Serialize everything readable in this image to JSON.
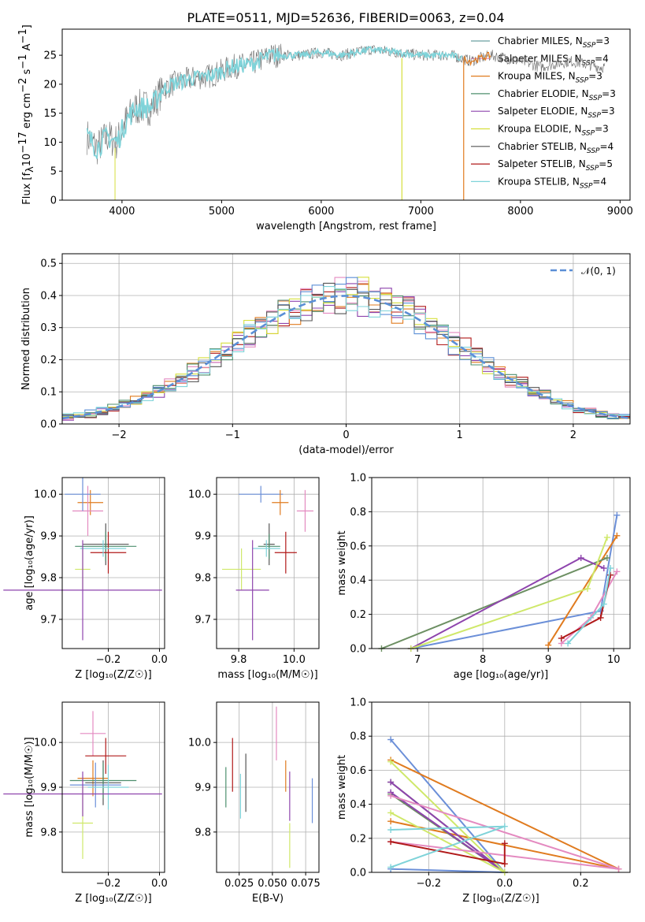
{
  "title": "PLATE=0511, MJD=52636, FIBERID=0063, z=0.04",
  "colors": {
    "chabrier_miles": "#6a9fa0",
    "salpeter_miles": "#e48ac0",
    "kroupa_miles": "#e07b1f",
    "chabrier_elodie": "#4e8f6e",
    "salpeter_elodie": "#8e44ad",
    "kroupa_elodie": "#d6df3c",
    "chabrier_stelib": "#555555",
    "salpeter_stelib": "#b11a1a",
    "kroupa_stelib": "#7fd3d9",
    "gaussian": "#5b8fd6",
    "blue_panel": "#6b8fd8",
    "green_panel": "#6c8f62",
    "yellow_panel": "#cfe86a",
    "grid": "#b0b0b0"
  },
  "legend": [
    {
      "label": "Chabrier MILES, N",
      "sub": "SSP",
      "tail": "=3",
      "color": "#6a9fa0"
    },
    {
      "label": "Salpeter MILES, N",
      "sub": "SSP",
      "tail": "=4",
      "color": "#e48ac0"
    },
    {
      "label": "Kroupa MILES, N",
      "sub": "SSP",
      "tail": "=3",
      "color": "#e07b1f"
    },
    {
      "label": "Chabrier ELODIE, N",
      "sub": "SSP",
      "tail": "=3",
      "color": "#4e8f6e"
    },
    {
      "label": "Salpeter ELODIE, N",
      "sub": "SSP",
      "tail": "=3",
      "color": "#8e44ad"
    },
    {
      "label": "Kroupa ELODIE, N",
      "sub": "SSP",
      "tail": "=3",
      "color": "#d6df3c"
    },
    {
      "label": "Chabrier STELIB, N",
      "sub": "SSP",
      "tail": "=4",
      "color": "#555555"
    },
    {
      "label": "Salpeter STELIB, N",
      "sub": "SSP",
      "tail": "=5",
      "color": "#b11a1a"
    },
    {
      "label": "Kroupa STELIB, N",
      "sub": "SSP",
      "tail": "=4",
      "color": "#7fd3d9"
    }
  ],
  "chart_data": [
    {
      "type": "line",
      "title": "PLATE=0511, MJD=52636, FIBERID=0063, z=0.04",
      "xlabel": "wavelength [Angstrom, rest frame]",
      "ylabel": "Flux [f",
      "ylabel_sub": "λ",
      "ylabel_rest": "10",
      "ylabel_sup1": "−17",
      "ylabel_tail": " erg cm",
      "ylabel_sup2": "−2",
      "ylabel_tail2": " s",
      "ylabel_sup3": "−1",
      "ylabel_tail3": " A",
      "ylabel_sup4": "−1",
      "ylabel_end": "]",
      "xlim": [
        3400,
        9100
      ],
      "ylim": [
        0,
        29.5
      ],
      "xticks": [
        4000,
        5000,
        6000,
        7000,
        8000,
        9000
      ],
      "yticks": [
        0,
        5,
        10,
        15,
        20,
        25
      ],
      "continuum": [
        [
          3650,
          11
        ],
        [
          3750,
          9
        ],
        [
          3850,
          11
        ],
        [
          3950,
          10
        ],
        [
          4050,
          14
        ],
        [
          4150,
          16
        ],
        [
          4300,
          16
        ],
        [
          4400,
          19
        ],
        [
          4500,
          20
        ],
        [
          4700,
          21
        ],
        [
          4900,
          21.5
        ],
        [
          5100,
          23
        ],
        [
          5300,
          23.5
        ],
        [
          5500,
          25
        ],
        [
          5800,
          25
        ],
        [
          6000,
          25.5
        ],
        [
          6200,
          25
        ],
        [
          6500,
          26
        ],
        [
          7000,
          25
        ],
        [
          7300,
          25
        ],
        [
          7500,
          24
        ],
        [
          7700,
          25
        ],
        [
          8000,
          24
        ],
        [
          8200,
          23
        ],
        [
          8500,
          24
        ],
        [
          8800,
          23
        ]
      ]
    },
    {
      "type": "bar",
      "xlabel": "(data-model)/error",
      "ylabel": "Normed distribution",
      "legend": "𝒩(0, 1)",
      "xlim": [
        -2.5,
        2.5
      ],
      "ylim": [
        0,
        0.53
      ],
      "xticks": [
        -2,
        -1,
        0,
        1,
        2
      ],
      "xtick_labels": [
        "−2",
        "−1",
        "0",
        "1",
        "2"
      ],
      "yticks": [
        0.0,
        0.1,
        0.2,
        0.3,
        0.4,
        0.5
      ],
      "ytick_labels": [
        "0.0",
        "0.1",
        "0.2",
        "0.3",
        "0.4",
        "0.5"
      ]
    },
    {
      "type": "scatter",
      "xlabel": "Z [log₁₀(Z/Z☉)]",
      "ylabel": "age  [log₁₀(age/yr)]",
      "xlim": [
        -0.38,
        0.02
      ],
      "ylim": [
        9.63,
        10.04
      ],
      "xticks": [
        -0.2,
        0.0
      ],
      "xtick_labels": [
        "−0.2",
        "0.0"
      ],
      "yticks": [
        9.7,
        9.8,
        9.9,
        10.0
      ],
      "ytick_labels": [
        "9.7",
        "9.8",
        "9.9",
        "10.0"
      ]
    },
    {
      "type": "scatter",
      "xlabel": "mass [log₁₀(M/M☉)]",
      "ylabel": "",
      "xlim": [
        9.72,
        10.09
      ],
      "ylim": [
        9.63,
        10.04
      ],
      "xticks": [
        9.8,
        10.0
      ],
      "xtick_labels": [
        "9.8",
        "10.0"
      ],
      "yticks": [
        9.7,
        9.8,
        9.9,
        10.0
      ],
      "ytick_labels": [
        "9.7",
        "9.8",
        "9.9",
        "10.0"
      ]
    },
    {
      "type": "line",
      "xlabel": "age  [log₁₀(age/yr)]",
      "ylabel": "mass weight",
      "xlim": [
        6.3,
        10.25
      ],
      "ylim": [
        0.0,
        1.0
      ],
      "xticks": [
        7,
        8,
        9,
        10
      ],
      "xtick_labels": [
        "7",
        "8",
        "9",
        "10"
      ],
      "yticks": [
        0.0,
        0.2,
        0.4,
        0.6,
        0.8,
        1.0
      ],
      "ytick_labels": [
        "0.0",
        "0.2",
        "0.4",
        "0.6",
        "0.8",
        "1.0"
      ],
      "series": [
        {
          "color": "#6b8fd8",
          "x": [
            6.9,
            9.8,
            10.05
          ],
          "y": [
            0.0,
            0.22,
            0.78
          ]
        },
        {
          "color": "#e07b1f",
          "x": [
            9.0,
            10.05
          ],
          "y": [
            0.02,
            0.66
          ]
        },
        {
          "color": "#6c8f62",
          "x": [
            6.45,
            9.9
          ],
          "y": [
            0.0,
            0.53
          ]
        },
        {
          "color": "#8e44ad",
          "x": [
            6.9,
            9.5,
            9.85
          ],
          "y": [
            0.0,
            0.53,
            0.47
          ]
        },
        {
          "color": "#cfe86a",
          "x": [
            6.9,
            9.6,
            9.9
          ],
          "y": [
            0.0,
            0.35,
            0.65
          ]
        },
        {
          "color": "#e48ac0",
          "x": [
            9.2,
            9.65,
            10.05
          ],
          "y": [
            0.03,
            0.18,
            0.45
          ]
        },
        {
          "color": "#b11a1a",
          "x": [
            9.2,
            9.8,
            9.95
          ],
          "y": [
            0.06,
            0.18,
            0.43
          ]
        },
        {
          "color": "#7fd3d9",
          "x": [
            9.3,
            9.85,
            9.95
          ],
          "y": [
            0.03,
            0.26,
            0.47
          ]
        }
      ]
    },
    {
      "type": "scatter",
      "xlabel": "Z [log₁₀(Z/Z☉)]",
      "ylabel": "mass [log₁₀(M/M☉)]",
      "xlim": [
        -0.38,
        0.02
      ],
      "ylim": [
        9.71,
        10.09
      ],
      "xticks": [
        -0.2,
        0.0
      ],
      "xtick_labels": [
        "−0.2",
        "0.0"
      ],
      "yticks": [
        9.8,
        9.9,
        10.0
      ],
      "ytick_labels": [
        "9.8",
        "9.9",
        "10.0"
      ]
    },
    {
      "type": "scatter",
      "xlabel": "E(B-V)",
      "ylabel": "",
      "xlim": [
        0.008,
        0.085
      ],
      "ylim": [
        9.71,
        10.09
      ],
      "xticks": [
        0.025,
        0.05,
        0.075
      ],
      "xtick_labels": [
        "0.025",
        "0.050",
        "0.075"
      ],
      "yticks": [
        9.8,
        9.9,
        10.0
      ],
      "ytick_labels": [
        "9.8",
        "9.9",
        "10.0"
      ]
    },
    {
      "type": "line",
      "xlabel": "Z [log₁₀(Z/Z☉)]",
      "ylabel": "mass weight",
      "xlim": [
        -0.35,
        0.33
      ],
      "ylim": [
        0.0,
        1.0
      ],
      "xticks": [
        -0.2,
        0.0,
        0.2
      ],
      "xtick_labels": [
        "−0.2",
        "0.0",
        "0.2"
      ],
      "yticks": [
        0.0,
        0.2,
        0.4,
        0.6,
        0.8,
        1.0
      ],
      "ytick_labels": [
        "0.0",
        "0.2",
        "0.4",
        "0.6",
        "0.8",
        "1.0"
      ],
      "series": [
        {
          "color": "#6b8fd8",
          "x": [
            -0.3,
            0.0,
            -0.3
          ],
          "y": [
            0.78,
            0.0,
            0.02
          ]
        },
        {
          "color": "#e07b1f",
          "x": [
            -0.3,
            0.3,
            -0.3
          ],
          "y": [
            0.66,
            0.02,
            0.3
          ]
        },
        {
          "color": "#6c8f62",
          "x": [
            -0.3,
            0.0,
            -0.3
          ],
          "y": [
            0.53,
            0.0,
            0.46
          ]
        },
        {
          "color": "#8e44ad",
          "x": [
            -0.3,
            0.0,
            -0.3
          ],
          "y": [
            0.47,
            0.0,
            0.53
          ]
        },
        {
          "color": "#cfe86a",
          "x": [
            -0.3,
            0.0,
            -0.3
          ],
          "y": [
            0.65,
            0.0,
            0.35
          ]
        },
        {
          "color": "#e48ac0",
          "x": [
            -0.3,
            0.3,
            -0.3
          ],
          "y": [
            0.45,
            0.02,
            0.18
          ]
        },
        {
          "color": "#b11a1a",
          "x": [
            -0.3,
            0.0,
            0.0
          ],
          "y": [
            0.18,
            0.05,
            0.17
          ]
        },
        {
          "color": "#7fd3d9",
          "x": [
            -0.3,
            0.0,
            -0.3
          ],
          "y": [
            0.03,
            0.27,
            0.25
          ]
        }
      ]
    }
  ]
}
